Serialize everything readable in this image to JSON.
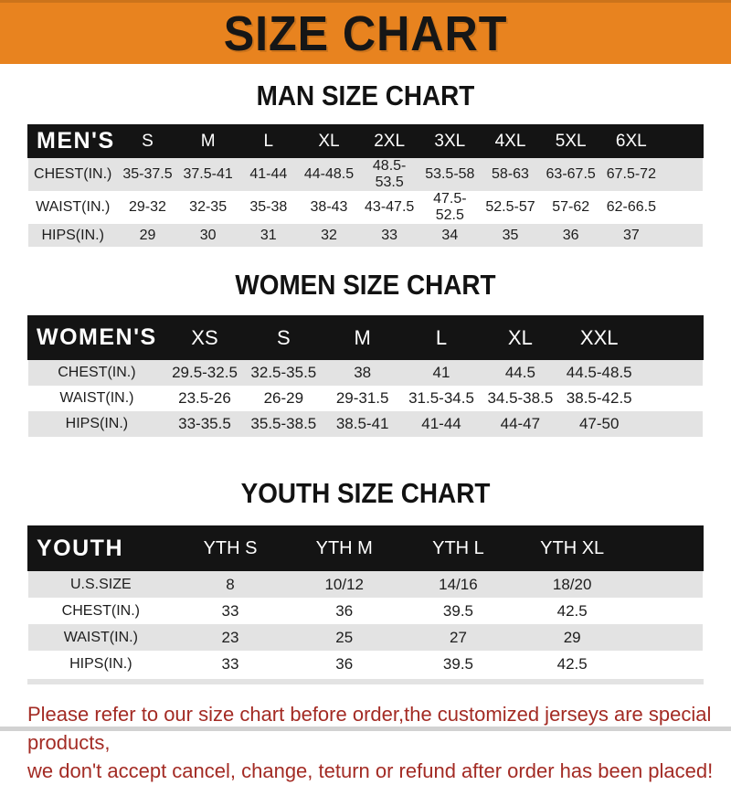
{
  "banner": {
    "title": "SIZE CHART"
  },
  "sections": [
    {
      "title": "MAN SIZE CHART",
      "header_label": "MEN'S",
      "columns": [
        "S",
        "M",
        "L",
        "XL",
        "2XL",
        "3XL",
        "4XL",
        "5XL",
        "6XL"
      ],
      "rows": [
        {
          "label": "CHEST(IN.)",
          "values": [
            "35-37.5",
            "37.5-41",
            "41-44",
            "44-48.5",
            "48.5-53.5",
            "53.5-58",
            "58-63",
            "63-67.5",
            "67.5-72"
          ]
        },
        {
          "label": "WAIST(IN.)",
          "values": [
            "29-32",
            "32-35",
            "35-38",
            "38-43",
            "43-47.5",
            "47.5-52.5",
            "52.5-57",
            "57-62",
            "62-66.5"
          ]
        },
        {
          "label": "HIPS(IN.)",
          "values": [
            "29",
            "30",
            "31",
            "32",
            "33",
            "34",
            "35",
            "36",
            "37"
          ]
        }
      ]
    },
    {
      "title": "WOMEN SIZE CHART",
      "header_label": "WOMEN'S",
      "columns": [
        "XS",
        "S",
        "M",
        "L",
        "XL",
        "XXL"
      ],
      "rows": [
        {
          "label": "CHEST(IN.)",
          "values": [
            "29.5-32.5",
            "32.5-35.5",
            "38",
            "41",
            "44.5",
            "44.5-48.5"
          ]
        },
        {
          "label": "WAIST(IN.)",
          "values": [
            "23.5-26",
            "26-29",
            "29-31.5",
            "31.5-34.5",
            "34.5-38.5",
            "38.5-42.5"
          ]
        },
        {
          "label": "HIPS(IN.)",
          "values": [
            "33-35.5",
            "35.5-38.5",
            "38.5-41",
            "41-44",
            "44-47",
            "47-50"
          ]
        }
      ]
    },
    {
      "title": "YOUTH SIZE CHART",
      "header_label": "YOUTH",
      "columns": [
        "YTH S",
        "YTH M",
        "YTH L",
        "YTH XL"
      ],
      "rows": [
        {
          "label": "U.S.SIZE",
          "values": [
            "8",
            "10/12",
            "14/16",
            "18/20"
          ]
        },
        {
          "label": "CHEST(IN.)",
          "values": [
            "33",
            "36",
            "39.5",
            "42.5"
          ]
        },
        {
          "label": "WAIST(IN.)",
          "values": [
            "23",
            "25",
            "27",
            "29"
          ]
        },
        {
          "label": "HIPS(IN.)",
          "values": [
            "33",
            "36",
            "39.5",
            "42.5"
          ]
        }
      ]
    }
  ],
  "footer": {
    "line1": "Please refer to our size chart before order,the customized jerseys are special products,",
    "line2": "we don't accept cancel, change, teturn or refund after order has been placed!"
  },
  "colors": {
    "banner_orange": "#E8831F",
    "header_bar_black": "#141414",
    "row_stripe_gray": "#E3E3E3",
    "footer_red": "#A32B24"
  }
}
